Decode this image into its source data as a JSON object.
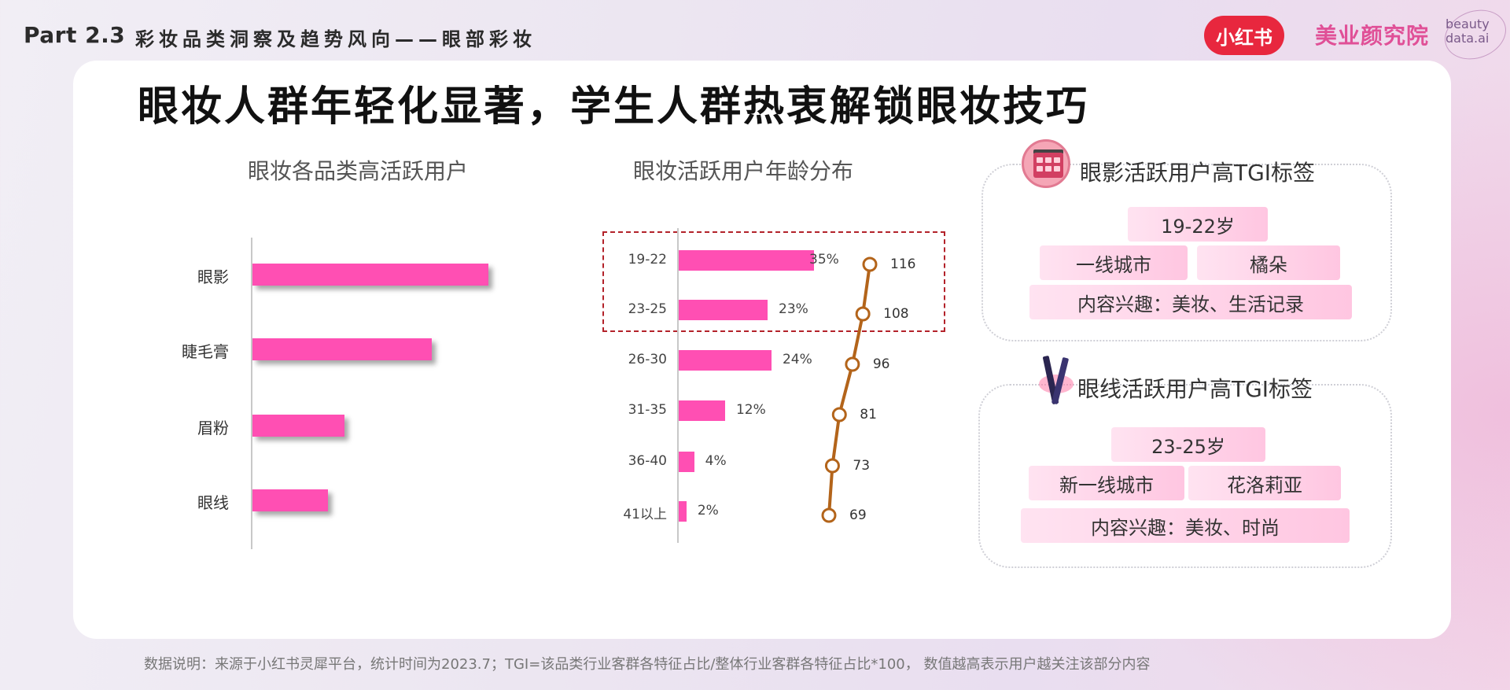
{
  "header": {
    "part": "Part 2.3",
    "subtitle": "彩妆品类洞察及趋势风向——眼部彩妆",
    "xhs_logo": "小红书",
    "brand_name": "美业颜究院",
    "brand_en_1": "beauty",
    "brand_en_2": "data.ai"
  },
  "main_title": "眼妆人群年轻化显著，学生人群热衷解锁眼妆技巧",
  "footer": "数据说明：来源于小红书灵犀平台，统计时间为2023.7；TGI=该品类行业客群各特征占比/整体行业客群各特征占比*100， 数值越高表示用户越关注该部分内容",
  "chart_data": [
    {
      "type": "bar",
      "orientation": "horizontal",
      "title": "眼妆各品类高活跃用户",
      "categories": [
        "眼影",
        "睫毛膏",
        "眉粉",
        "眼线"
      ],
      "values": [
        100,
        76,
        39,
        32
      ],
      "color": "#ff4fb3",
      "grid": false
    },
    {
      "type": "bar",
      "orientation": "horizontal",
      "title": "眼妆活跃用户年龄分布",
      "categories": [
        "19-22",
        "23-25",
        "26-30",
        "31-35",
        "36-40",
        "41以上"
      ],
      "series": [
        {
          "values": [
            35,
            23,
            24,
            12,
            4,
            2
          ],
          "labels": [
            "35%",
            "23%",
            "24%",
            "12%",
            "4%",
            "2%"
          ],
          "color": "#ff4fb3"
        },
        {
          "type": "line",
          "values": [
            116,
            108,
            96,
            81,
            73,
            69
          ],
          "labels": [
            "116",
            "108",
            "96",
            "81",
            "73",
            "69"
          ],
          "color": "#b3641a"
        }
      ],
      "highlight": [
        "19-22",
        "23-25"
      ],
      "highlight_color": "#b3222a"
    }
  ],
  "panels": {
    "eyeshadow": {
      "title": "眼影活跃用户高TGI标签",
      "icon": "eyeshadow-palette-icon",
      "tags": [
        "19-22岁",
        "一线城市",
        "橘朵",
        "内容兴趣：美妆、生活记录"
      ]
    },
    "eyeliner": {
      "title": "眼线活跃用户高TGI标签",
      "icon": "eyeliner-pencil-icon",
      "tags": [
        "23-25岁",
        "新一线城市",
        "花洛莉亚",
        "内容兴趣：美妆、时尚"
      ]
    }
  }
}
